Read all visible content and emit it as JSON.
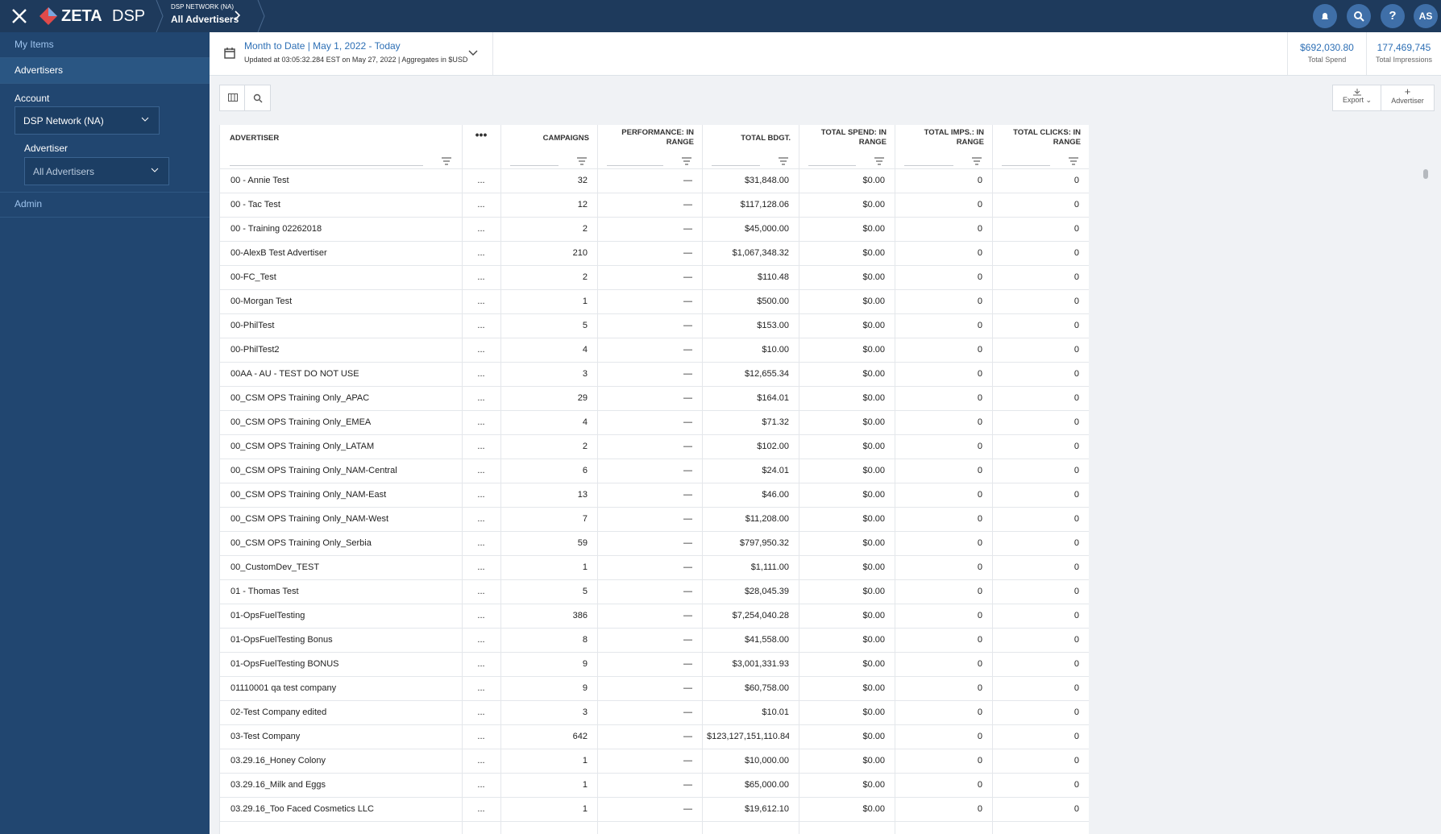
{
  "topbar": {
    "logo": "ZETA",
    "product": "DSP",
    "breadcrumb_top": "DSP NETWORK (NA)",
    "breadcrumb": "All Advertisers",
    "avatar": "AS"
  },
  "sidebar": {
    "items": [
      "My Items",
      "Advertisers"
    ],
    "account_label": "Account",
    "account": "DSP Network (NA)",
    "advertiser_label": "Advertiser",
    "advertiser": "All Advertisers",
    "admin": "Admin"
  },
  "header": {
    "date_range": "Month to Date | May 1, 2022 - Today",
    "updated": "Updated at 03:05:32.284 EST on May 27, 2022 | Aggregates in $USD",
    "total_spend": "$692,030.80",
    "total_spend_label": "Total Spend",
    "total_impressions": "177,469,745",
    "total_impressions_label": "Total Impressions"
  },
  "toolbar": {
    "export": "Export",
    "add": "Advertiser"
  },
  "table": {
    "columns": [
      "ADVERTISER",
      "CAMPAIGNS",
      "PERFORMANCE: IN RANGE",
      "TOTAL BDGT.",
      "TOTAL SPEND: IN RANGE",
      "TOTAL IMPS.: IN RANGE",
      "TOTAL CLICKS: IN RANGE"
    ],
    "rows": [
      [
        "00 - Annie Test",
        "...",
        "32",
        "—",
        "$31,848.00",
        "$0.00",
        "0",
        "0"
      ],
      [
        "00 - Tac Test",
        "...",
        "12",
        "—",
        "$117,128.06",
        "$0.00",
        "0",
        "0"
      ],
      [
        "00 - Training 02262018",
        "...",
        "2",
        "—",
        "$45,000.00",
        "$0.00",
        "0",
        "0"
      ],
      [
        "00-AlexB Test Advertiser",
        "...",
        "210",
        "—",
        "$1,067,348.32",
        "$0.00",
        "0",
        "0"
      ],
      [
        "00-FC_Test",
        "...",
        "2",
        "—",
        "$110.48",
        "$0.00",
        "0",
        "0"
      ],
      [
        "00-Morgan Test",
        "...",
        "1",
        "—",
        "$500.00",
        "$0.00",
        "0",
        "0"
      ],
      [
        "00-PhilTest",
        "...",
        "5",
        "—",
        "$153.00",
        "$0.00",
        "0",
        "0"
      ],
      [
        "00-PhilTest2",
        "...",
        "4",
        "—",
        "$10.00",
        "$0.00",
        "0",
        "0"
      ],
      [
        "00AA - AU - TEST DO NOT USE",
        "...",
        "3",
        "—",
        "$12,655.34",
        "$0.00",
        "0",
        "0"
      ],
      [
        "00_CSM OPS Training Only_APAC",
        "...",
        "29",
        "—",
        "$164.01",
        "$0.00",
        "0",
        "0"
      ],
      [
        "00_CSM OPS Training Only_EMEA",
        "...",
        "4",
        "—",
        "$71.32",
        "$0.00",
        "0",
        "0"
      ],
      [
        "00_CSM OPS Training Only_LATAM",
        "...",
        "2",
        "—",
        "$102.00",
        "$0.00",
        "0",
        "0"
      ],
      [
        "00_CSM OPS Training Only_NAM-Central",
        "...",
        "6",
        "—",
        "$24.01",
        "$0.00",
        "0",
        "0"
      ],
      [
        "00_CSM OPS Training Only_NAM-East",
        "...",
        "13",
        "—",
        "$46.00",
        "$0.00",
        "0",
        "0"
      ],
      [
        "00_CSM OPS Training Only_NAM-West",
        "...",
        "7",
        "—",
        "$11,208.00",
        "$0.00",
        "0",
        "0"
      ],
      [
        "00_CSM OPS Training Only_Serbia",
        "...",
        "59",
        "—",
        "$797,950.32",
        "$0.00",
        "0",
        "0"
      ],
      [
        "00_CustomDev_TEST",
        "...",
        "1",
        "—",
        "$1,111.00",
        "$0.00",
        "0",
        "0"
      ],
      [
        "01 - Thomas Test",
        "...",
        "5",
        "—",
        "$28,045.39",
        "$0.00",
        "0",
        "0"
      ],
      [
        "01-OpsFuelTesting",
        "...",
        "386",
        "—",
        "$7,254,040.28",
        "$0.00",
        "0",
        "0"
      ],
      [
        "01-OpsFuelTesting Bonus",
        "...",
        "8",
        "—",
        "$41,558.00",
        "$0.00",
        "0",
        "0"
      ],
      [
        "01-OpsFuelTesting BONUS",
        "...",
        "9",
        "—",
        "$3,001,331.93",
        "$0.00",
        "0",
        "0"
      ],
      [
        "01110001 qa test company",
        "...",
        "9",
        "—",
        "$60,758.00",
        "$0.00",
        "0",
        "0"
      ],
      [
        "02-Test Company edited",
        "...",
        "3",
        "—",
        "$10.01",
        "$0.00",
        "0",
        "0"
      ],
      [
        "03-Test Company",
        "...",
        "642",
        "—",
        "$123,127,151,110.84",
        "$0.00",
        "0",
        "0"
      ],
      [
        "03.29.16_Honey Colony",
        "...",
        "1",
        "—",
        "$10,000.00",
        "$0.00",
        "0",
        "0"
      ],
      [
        "03.29.16_Milk and Eggs",
        "...",
        "1",
        "—",
        "$65,000.00",
        "$0.00",
        "0",
        "0"
      ],
      [
        "03.29.16_Too Faced Cosmetics LLC",
        "...",
        "1",
        "—",
        "$19,612.10",
        "$0.00",
        "0",
        "0"
      ]
    ]
  }
}
